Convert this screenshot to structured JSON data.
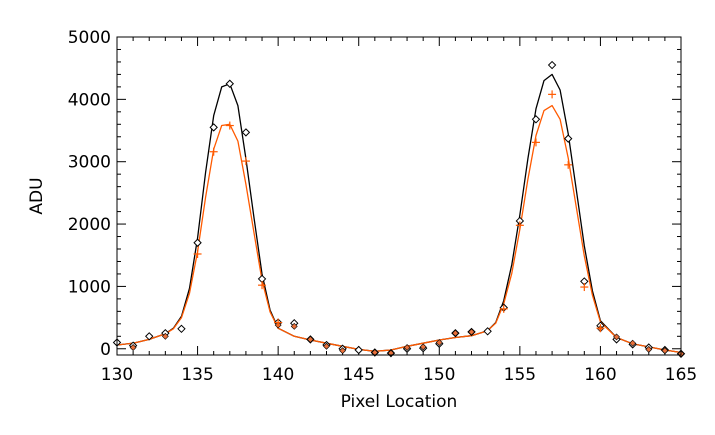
{
  "chart_data": {
    "type": "line",
    "xlabel": "Pixel Location",
    "ylabel": "ADU",
    "xlim": [
      130,
      165
    ],
    "ylim": [
      -100,
      5000
    ],
    "xticks": [
      130,
      135,
      140,
      145,
      150,
      155,
      160,
      165
    ],
    "yticks": [
      0,
      1000,
      2000,
      3000,
      4000,
      5000
    ],
    "grid": false,
    "legend": "none",
    "colors": {
      "black": "#000000",
      "orange": "#ff5a00",
      "orange_fill": "#e8703a"
    },
    "markers": {
      "diamonds": {
        "x": [
          130,
          131,
          132,
          133,
          134,
          135,
          136,
          137,
          138,
          139,
          140,
          141,
          142,
          143,
          144,
          145,
          146,
          147,
          148,
          149,
          150,
          151,
          152,
          153,
          154,
          155,
          156,
          157,
          158,
          159,
          160,
          161,
          162,
          163,
          164,
          165
        ],
        "y": [
          100,
          50,
          200,
          250,
          320,
          1700,
          3550,
          4250,
          3470,
          1120,
          420,
          410,
          150,
          60,
          0,
          -20,
          -60,
          -70,
          0,
          10,
          80,
          250,
          270,
          280,
          660,
          2050,
          3680,
          4550,
          3370,
          1080,
          370,
          150,
          70,
          20,
          -20,
          -80
        ]
      },
      "filled_diamonds": {
        "x": [
          131,
          133,
          140,
          141,
          142,
          143,
          144,
          146,
          147,
          148,
          149,
          150,
          151,
          152,
          160,
          161,
          162,
          163,
          164,
          165
        ],
        "y": [
          20,
          200,
          380,
          360,
          150,
          40,
          -30,
          -60,
          -70,
          20,
          30,
          100,
          250,
          270,
          320,
          190,
          90,
          -10,
          -30,
          -80
        ]
      },
      "crosses": {
        "x": [
          135,
          136,
          137,
          138,
          139,
          140,
          154,
          155,
          156,
          157,
          158,
          159,
          160
        ],
        "y": [
          1520,
          3160,
          3580,
          3010,
          1020,
          420,
          640,
          1980,
          3310,
          4080,
          2950,
          990,
          330
        ]
      }
    },
    "series": [
      {
        "color": "black",
        "x": [
          130,
          131,
          132,
          133,
          133.5,
          134,
          134.5,
          135,
          135.5,
          136,
          136.5,
          137,
          137.5,
          138,
          138.5,
          139,
          139.5,
          140,
          141,
          142,
          143,
          144,
          145,
          146,
          147,
          148,
          149,
          150,
          151,
          152,
          153,
          153.5,
          154,
          154.5,
          155,
          155.5,
          156,
          156.5,
          157,
          157.5,
          158,
          158.5,
          159,
          159.5,
          160,
          161,
          162,
          163,
          164,
          165
        ],
        "y": [
          60,
          90,
          150,
          240,
          330,
          520,
          970,
          1780,
          2830,
          3740,
          4200,
          4250,
          3900,
          3050,
          2100,
          1200,
          620,
          330,
          200,
          140,
          90,
          40,
          -10,
          -40,
          -20,
          40,
          90,
          140,
          180,
          210,
          290,
          420,
          770,
          1350,
          2150,
          3050,
          3850,
          4300,
          4400,
          4150,
          3450,
          2550,
          1650,
          930,
          450,
          180,
          80,
          30,
          -20,
          -60
        ]
      },
      {
        "color": "orange",
        "x": [
          130,
          131,
          132,
          133,
          133.5,
          134,
          134.5,
          135,
          135.5,
          136,
          136.5,
          137,
          137.5,
          138,
          138.5,
          139,
          139.5,
          140,
          141,
          142,
          143,
          144,
          145,
          146,
          147,
          148,
          149,
          150,
          151,
          152,
          153,
          153.5,
          154,
          154.5,
          155,
          155.5,
          156,
          156.5,
          157,
          157.5,
          158,
          158.5,
          159,
          159.5,
          160,
          161,
          162,
          163,
          164,
          165
        ],
        "y": [
          60,
          90,
          150,
          240,
          320,
          500,
          890,
          1560,
          2430,
          3200,
          3580,
          3600,
          3330,
          2640,
          1860,
          1100,
          590,
          330,
          200,
          140,
          90,
          40,
          -10,
          -40,
          -20,
          40,
          90,
          140,
          180,
          210,
          290,
          410,
          720,
          1210,
          1920,
          2720,
          3420,
          3820,
          3900,
          3680,
          3060,
          2270,
          1490,
          860,
          430,
          180,
          80,
          30,
          -20,
          -60
        ]
      }
    ]
  }
}
